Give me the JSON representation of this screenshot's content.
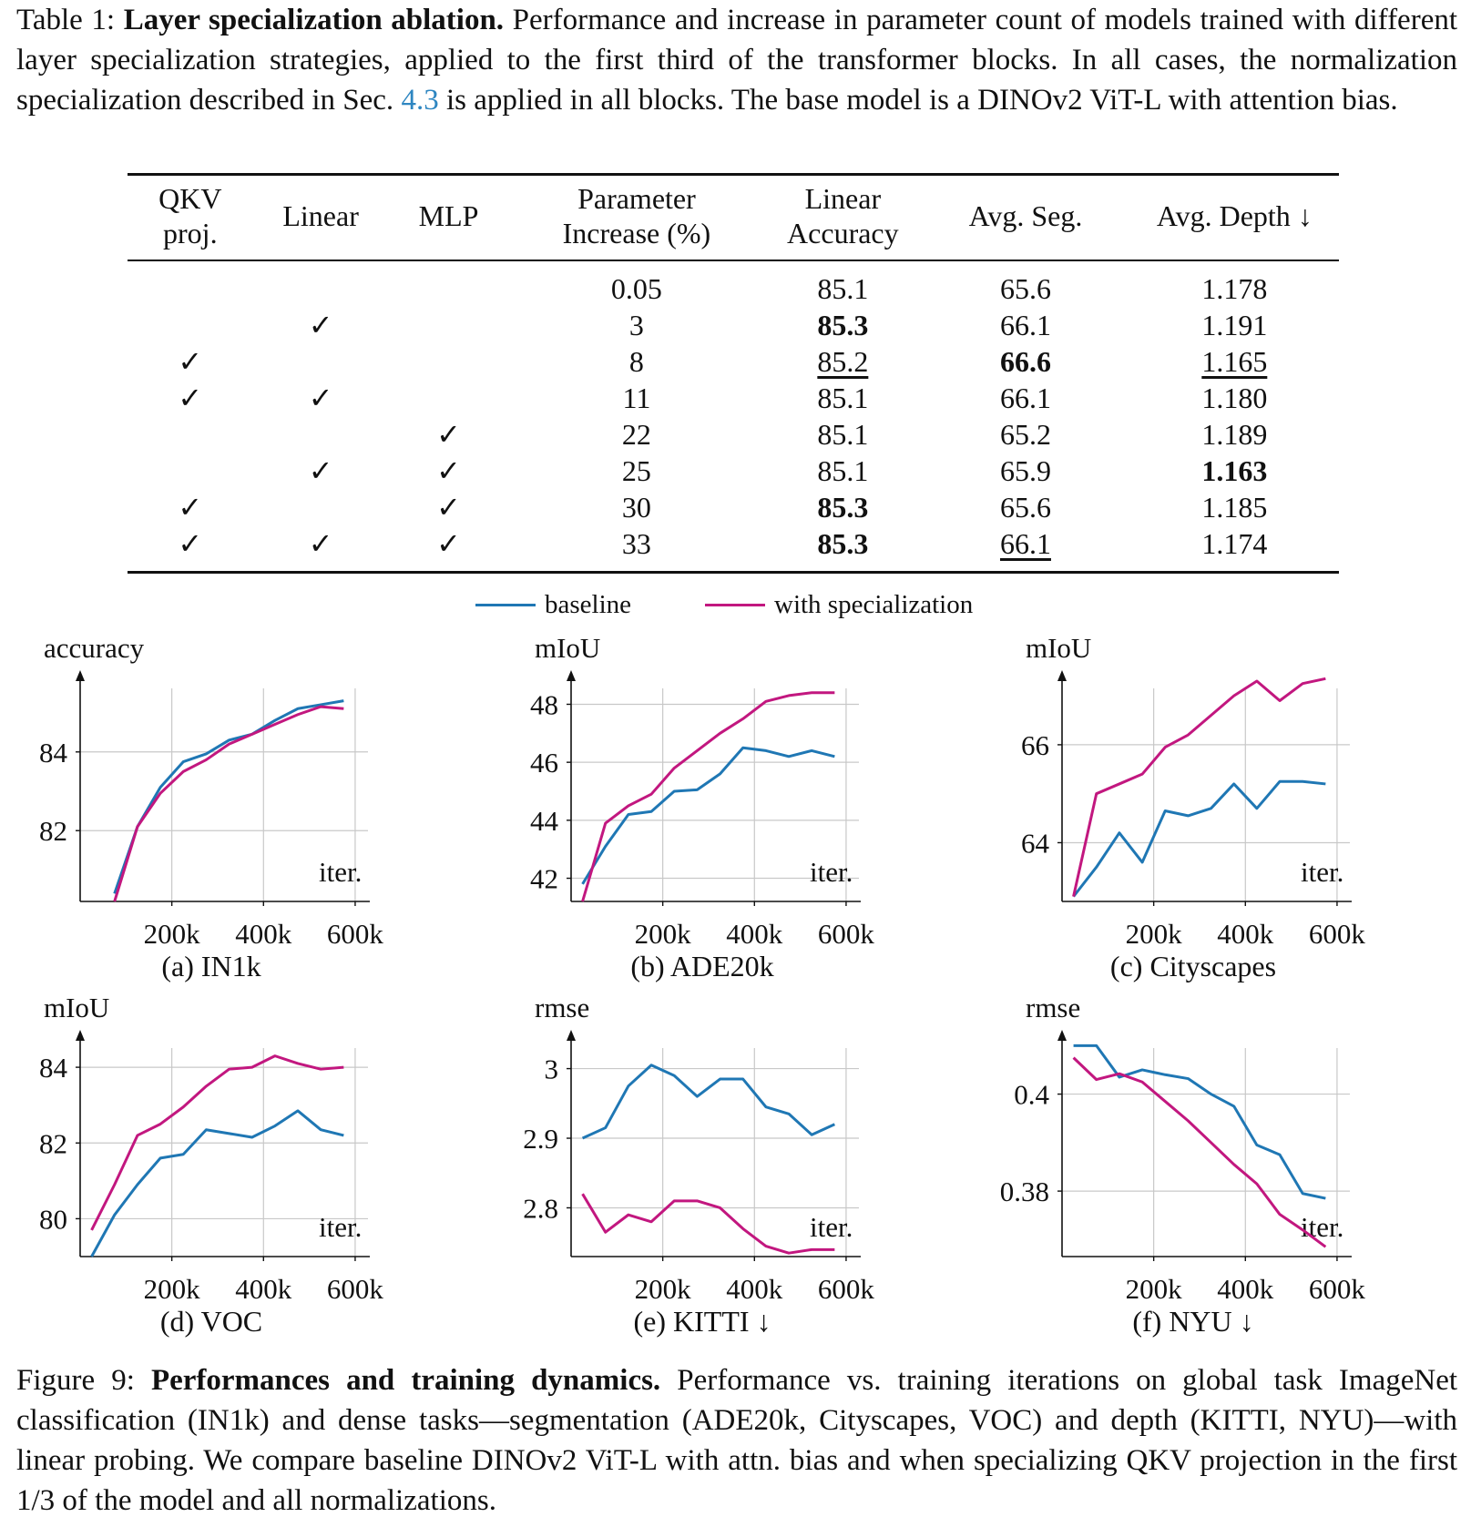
{
  "table": {
    "caption_label": "Table 1:",
    "caption_title": "Layer specialization ablation.",
    "caption_text_1": "Performance and increase in parameter count of models trained with different layer specialization strategies, applied to the first third of the transformer blocks. In all cases, the normalization specialization described in Sec.",
    "caption_ref": "4.3",
    "caption_text_2": "is applied in all blocks. The base model is a DINOv2 ViT-L with attention bias.",
    "headers": {
      "qkv_1": "QKV",
      "qkv_2": "proj.",
      "linear": "Linear",
      "mlp": "MLP",
      "param_1": "Parameter",
      "param_2": "Increase (%)",
      "acc_1": "Linear",
      "acc_2": "Accuracy",
      "seg": "Avg. Seg.",
      "depth": "Avg. Depth ↓"
    },
    "rows": [
      {
        "qkv": "",
        "linear": "",
        "mlp": "",
        "param": "0.05",
        "acc": "85.1",
        "seg": "65.6",
        "depth": "1.178"
      },
      {
        "qkv": "",
        "linear": "✓",
        "mlp": "",
        "param": "3",
        "acc": "85.3",
        "seg": "66.1",
        "depth": "1.191"
      },
      {
        "qkv": "✓",
        "linear": "",
        "mlp": "",
        "param": "8",
        "acc": "85.2",
        "seg": "66.6",
        "depth": "1.165"
      },
      {
        "qkv": "✓",
        "linear": "✓",
        "mlp": "",
        "param": "11",
        "acc": "85.1",
        "seg": "66.1",
        "depth": "1.180"
      },
      {
        "qkv": "",
        "linear": "",
        "mlp": "✓",
        "param": "22",
        "acc": "85.1",
        "seg": "65.2",
        "depth": "1.189"
      },
      {
        "qkv": "",
        "linear": "✓",
        "mlp": "✓",
        "param": "25",
        "acc": "85.1",
        "seg": "65.9",
        "depth": "1.163"
      },
      {
        "qkv": "✓",
        "linear": "",
        "mlp": "✓",
        "param": "30",
        "acc": "85.3",
        "seg": "65.6",
        "depth": "1.185"
      },
      {
        "qkv": "✓",
        "linear": "✓",
        "mlp": "✓",
        "param": "33",
        "acc": "85.3",
        "seg": "66.1",
        "depth": "1.174"
      }
    ]
  },
  "legend": {
    "baseline": "baseline",
    "special": "with specialization",
    "baseline_color": "#1f77b4",
    "special_color": "#c2177f"
  },
  "figure": {
    "caption_label": "Figure 9:",
    "caption_title": "Performances and training dynamics.",
    "caption_text": "Performance vs. training iterations on global task ImageNet classification (IN1k) and dense tasks—segmentation (ADE20k, Cityscapes, VOC) and depth (KITTI, NYU)—with linear probing. We compare baseline DINOv2 ViT-L with attn. bias and when specializing QKV projection in the first 1/3 of the model and all normalizations."
  },
  "chart_data": [
    {
      "type": "line",
      "title": "(a) IN1k",
      "ylabel": "accuracy",
      "xlabel": "iter.",
      "xlim": [
        0,
        620000
      ],
      "ylim": [
        80.2,
        85.8
      ],
      "xticks": [
        200000,
        400000,
        600000
      ],
      "xtick_labels": [
        "200k",
        "400k",
        "600k"
      ],
      "yticks": [
        82,
        84
      ],
      "ytick_labels": [
        "82",
        "84"
      ],
      "x": [
        75000,
        125000,
        175000,
        225000,
        275000,
        325000,
        375000,
        425000,
        475000,
        525000,
        575000
      ],
      "series": [
        {
          "name": "baseline",
          "values": [
            80.4,
            82.1,
            83.1,
            83.75,
            83.95,
            84.3,
            84.45,
            84.8,
            85.1,
            85.2,
            85.3
          ]
        },
        {
          "name": "with specialization",
          "values": [
            80.2,
            82.1,
            82.95,
            83.5,
            83.8,
            84.2,
            84.45,
            84.7,
            84.95,
            85.15,
            85.1
          ]
        }
      ]
    },
    {
      "type": "line",
      "title": "(b) ADE20k",
      "ylabel": "mIoU",
      "xlabel": "iter.",
      "xlim": [
        0,
        620000
      ],
      "ylim": [
        41.2,
        48.8
      ],
      "xticks": [
        200000,
        400000,
        600000
      ],
      "xtick_labels": [
        "200k",
        "400k",
        "600k"
      ],
      "yticks": [
        42,
        44,
        46,
        48
      ],
      "ytick_labels": [
        "42",
        "44",
        "46",
        "48"
      ],
      "x": [
        25000,
        75000,
        125000,
        175000,
        225000,
        275000,
        325000,
        375000,
        425000,
        475000,
        525000,
        575000
      ],
      "series": [
        {
          "name": "baseline",
          "values": [
            41.8,
            43.1,
            44.2,
            44.3,
            45.0,
            45.05,
            45.6,
            46.5,
            46.4,
            46.2,
            46.4,
            46.2
          ]
        },
        {
          "name": "with specialization",
          "values": [
            41.2,
            43.9,
            44.5,
            44.9,
            45.8,
            46.4,
            47.0,
            47.5,
            48.1,
            48.3,
            48.4,
            48.4
          ]
        }
      ]
    },
    {
      "type": "line",
      "title": "(c) Cityscapes",
      "ylabel": "mIoU",
      "xlabel": "iter.",
      "xlim": [
        0,
        620000
      ],
      "ylim": [
        62.8,
        67.3
      ],
      "xticks": [
        200000,
        400000,
        600000
      ],
      "xtick_labels": [
        "200k",
        "400k",
        "600k"
      ],
      "yticks": [
        64,
        66
      ],
      "ytick_labels": [
        "64",
        "66"
      ],
      "x": [
        25000,
        75000,
        125000,
        175000,
        225000,
        275000,
        325000,
        375000,
        425000,
        475000,
        525000,
        575000
      ],
      "series": [
        {
          "name": "baseline",
          "values": [
            62.9,
            63.5,
            64.2,
            63.6,
            64.65,
            64.55,
            64.7,
            65.2,
            64.7,
            65.25,
            65.25,
            65.2
          ]
        },
        {
          "name": "with specialization",
          "values": [
            62.9,
            65.0,
            65.2,
            65.4,
            65.95,
            66.2,
            66.6,
            67.0,
            67.3,
            66.9,
            67.25,
            67.35
          ]
        }
      ]
    },
    {
      "type": "line",
      "title": "(d) VOC",
      "ylabel": "mIoU",
      "xlabel": "iter.",
      "xlim": [
        0,
        620000
      ],
      "ylim": [
        79.0,
        84.7
      ],
      "xticks": [
        200000,
        400000,
        600000
      ],
      "xtick_labels": [
        "200k",
        "400k",
        "600k"
      ],
      "yticks": [
        80,
        82,
        84
      ],
      "ytick_labels": [
        "80",
        "82",
        "84"
      ],
      "x": [
        25000,
        75000,
        125000,
        175000,
        225000,
        275000,
        325000,
        375000,
        425000,
        475000,
        525000,
        575000
      ],
      "series": [
        {
          "name": "baseline",
          "values": [
            79.0,
            80.1,
            80.9,
            81.6,
            81.7,
            82.35,
            82.25,
            82.15,
            82.45,
            82.85,
            82.35,
            82.2
          ]
        },
        {
          "name": "with specialization",
          "values": [
            79.7,
            80.9,
            82.2,
            82.5,
            82.95,
            83.5,
            83.95,
            84.0,
            84.3,
            84.1,
            83.95,
            84.0
          ]
        }
      ]
    },
    {
      "type": "line",
      "title": "(e) KITTI ↓",
      "ylabel": "rmse",
      "xlabel": "iter.",
      "xlim": [
        0,
        620000
      ],
      "ylim": [
        2.73,
        3.04
      ],
      "xticks": [
        200000,
        400000,
        600000
      ],
      "xtick_labels": [
        "200k",
        "400k",
        "600k"
      ],
      "yticks": [
        2.8,
        2.9,
        3.0
      ],
      "ytick_labels": [
        "2.8",
        "2.9",
        "3"
      ],
      "x": [
        25000,
        75000,
        125000,
        175000,
        225000,
        275000,
        325000,
        375000,
        425000,
        475000,
        525000,
        575000
      ],
      "series": [
        {
          "name": "baseline",
          "values": [
            2.9,
            2.915,
            2.975,
            3.005,
            2.99,
            2.96,
            2.985,
            2.985,
            2.945,
            2.935,
            2.905,
            2.92
          ]
        },
        {
          "name": "with specialization",
          "values": [
            2.82,
            2.765,
            2.79,
            2.78,
            2.81,
            2.81,
            2.8,
            2.77,
            2.745,
            2.735,
            2.74,
            2.74
          ]
        }
      ]
    },
    {
      "type": "line",
      "title": "(f) NYU ↓",
      "ylabel": "rmse",
      "xlabel": "iter.",
      "xlim": [
        0,
        620000
      ],
      "ylim": [
        0.3665,
        0.411
      ],
      "xticks": [
        200000,
        400000,
        600000
      ],
      "xtick_labels": [
        "200k",
        "400k",
        "600k"
      ],
      "yticks": [
        0.38,
        0.4
      ],
      "ytick_labels": [
        "0.38",
        "0.4"
      ],
      "x": [
        25000,
        75000,
        125000,
        175000,
        225000,
        275000,
        325000,
        375000,
        425000,
        475000,
        525000,
        575000
      ],
      "series": [
        {
          "name": "baseline",
          "values": [
            0.41,
            0.41,
            0.4035,
            0.405,
            0.404,
            0.4032,
            0.4,
            0.3975,
            0.3895,
            0.3875,
            0.3795,
            0.3785
          ]
        },
        {
          "name": "with specialization",
          "values": [
            0.4075,
            0.403,
            0.4042,
            0.4025,
            0.3985,
            0.3945,
            0.39,
            0.3855,
            0.3815,
            0.3752,
            0.372,
            0.3685
          ]
        }
      ]
    }
  ]
}
